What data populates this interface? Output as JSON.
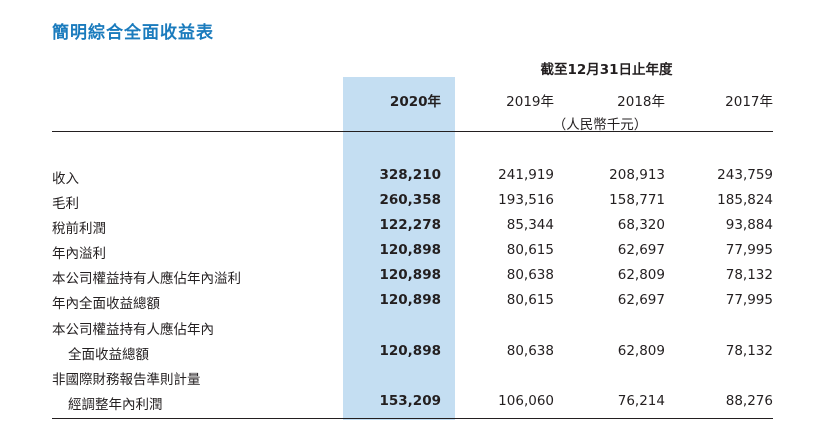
{
  "title": "簡明綜合全面收益表",
  "period_header": "截至12月31日止年度",
  "years": [
    "2020年",
    "2019年",
    "2018年",
    "2017年"
  ],
  "unit": "（人民幣千元）",
  "rows": [
    {
      "label": "收入",
      "values": [
        "328,210",
        "241,919",
        "208,913",
        "243,759"
      ]
    },
    {
      "label": "毛利",
      "values": [
        "260,358",
        "193,516",
        "158,771",
        "185,824"
      ]
    },
    {
      "label": "稅前利潤",
      "values": [
        "122,278",
        "85,344",
        "68,320",
        "93,884"
      ]
    },
    {
      "label": "年內溢利",
      "values": [
        "120,898",
        "80,615",
        "62,697",
        "77,995"
      ]
    },
    {
      "label": "本公司權益持有人應佔年內溢利",
      "values": [
        "120,898",
        "80,638",
        "62,809",
        "78,132"
      ]
    },
    {
      "label": "年內全面收益總額",
      "values": [
        "120,898",
        "80,615",
        "62,697",
        "77,995"
      ]
    },
    {
      "label": "本公司權益持有人應佔年內",
      "values": [
        "",
        "",
        "",
        ""
      ]
    },
    {
      "label": "全面收益總額",
      "indent": true,
      "values": [
        "120,898",
        "80,638",
        "62,809",
        "78,132"
      ]
    },
    {
      "label": "非國際財務報告準則計量",
      "values": [
        "",
        "",
        "",
        ""
      ]
    },
    {
      "label": "經調整年內利潤",
      "indent": true,
      "values": [
        "153,209",
        "106,060",
        "76,214",
        "88,276"
      ]
    }
  ]
}
